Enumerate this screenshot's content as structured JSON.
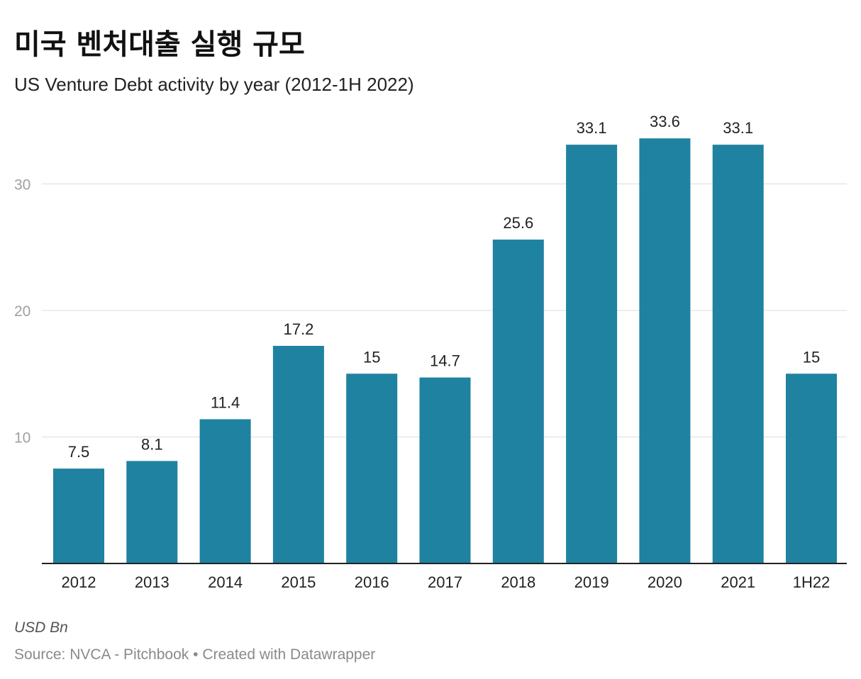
{
  "header": {
    "title": "미국 벤처대출 실행 규모",
    "subtitle": "US Venture Debt activity by year (2012-1H 2022)"
  },
  "footer": {
    "unit_note": "USD Bn",
    "source": "Source: NVCA - Pitchbook",
    "separator": "•",
    "credit": "Created with Datawrapper"
  },
  "colors": {
    "bar": "#1f82a0",
    "grid": "#dddddd",
    "axis": "#222222",
    "tick_label": "#a0a0a0"
  },
  "chart_data": {
    "type": "bar",
    "categories": [
      "2012",
      "2013",
      "2014",
      "2015",
      "2016",
      "2017",
      "2018",
      "2019",
      "2020",
      "2021",
      "1H22"
    ],
    "values": [
      7.5,
      8.1,
      11.4,
      17.2,
      15,
      14.7,
      25.6,
      33.1,
      33.6,
      33.1,
      15
    ],
    "value_labels": [
      "7.5",
      "8.1",
      "11.4",
      "17.2",
      "15",
      "14.7",
      "25.6",
      "33.1",
      "33.6",
      "33.1",
      "15"
    ],
    "ylim": [
      0,
      30.1
    ],
    "yticks": [
      10,
      20,
      30
    ],
    "grid": true,
    "legend": "none"
  }
}
